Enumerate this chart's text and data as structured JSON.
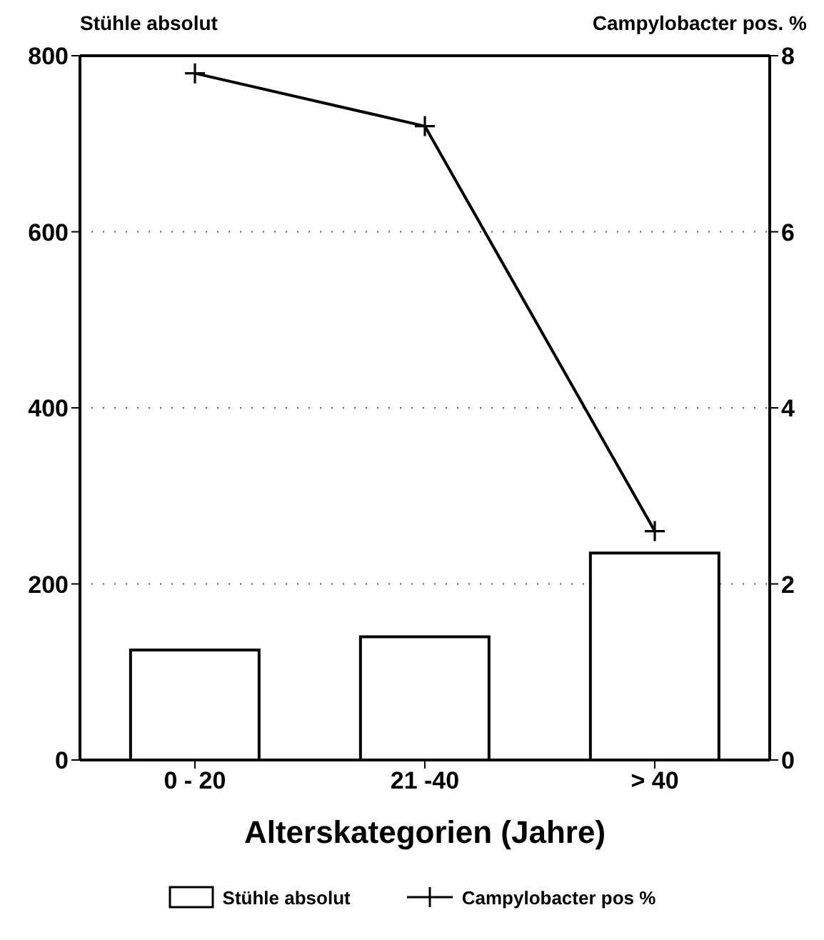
{
  "chart_data": {
    "type": "bar",
    "xlabel": "Alterskategorien (Jahre)",
    "ylabel": "Stühle absolut",
    "y2label": "Campylobacter pos. %",
    "categories": [
      "0 - 20",
      "21 -40",
      "> 40"
    ],
    "series": [
      {
        "name": "Stühle absolut",
        "color": "#ffffff",
        "values": [
          125,
          140,
          235
        ]
      },
      {
        "name": "Campylobacter pos %",
        "type": "line",
        "axis": "y2",
        "color": "#000000",
        "values": [
          7.8,
          7.2,
          2.6
        ]
      }
    ],
    "ylim": [
      0,
      800
    ],
    "yticks": [
      0,
      200,
      400,
      600,
      800
    ],
    "y2lim": [
      0,
      8
    ],
    "y2ticks": [
      0,
      2,
      4,
      6,
      8
    ],
    "grid": "y",
    "legend": "bottom",
    "marker": "cross",
    "line_style": "solid"
  }
}
